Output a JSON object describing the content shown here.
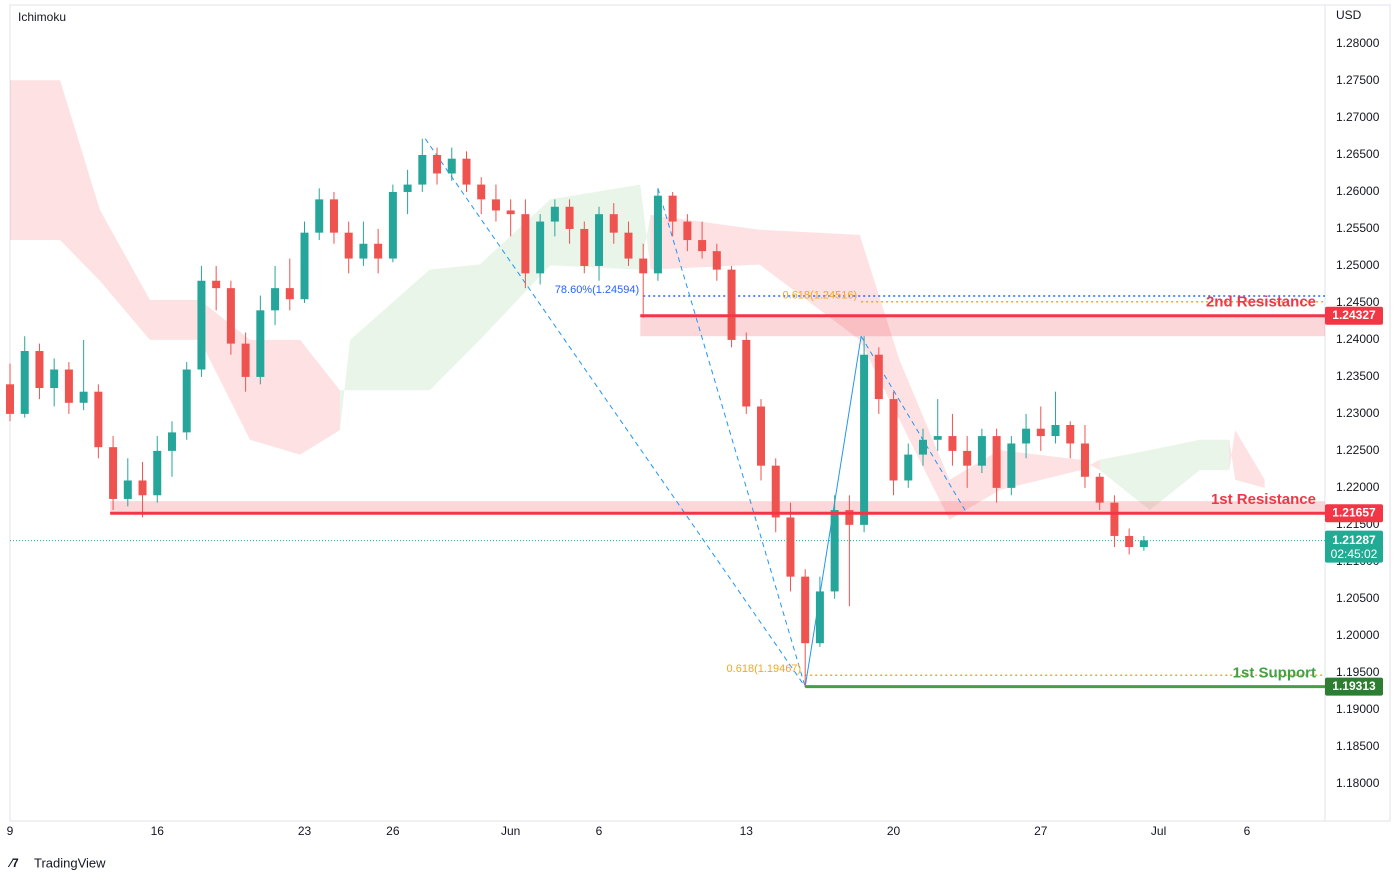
{
  "chart_data": {
    "type": "candlestick",
    "title": "Ichimoku",
    "currency": "USD",
    "brand": "TradingView",
    "xlim": [
      0,
      44.65
    ],
    "ylim": [
      1.1751,
      1.2846
    ],
    "xticks": [
      {
        "value": 0,
        "label": "9"
      },
      {
        "value": 5,
        "label": "16"
      },
      {
        "value": 10,
        "label": "23"
      },
      {
        "value": 13,
        "label": "26"
      },
      {
        "value": 17,
        "label": "Jun"
      },
      {
        "value": 20,
        "label": "6"
      },
      {
        "value": 25,
        "label": "13"
      },
      {
        "value": 30,
        "label": "20"
      },
      {
        "value": 35,
        "label": "27"
      },
      {
        "value": 39,
        "label": "Jul"
      },
      {
        "value": 42,
        "label": "6"
      }
    ],
    "yticks": [
      {
        "value": 1.28,
        "label": "1.28000"
      },
      {
        "value": 1.275,
        "label": "1.27500"
      },
      {
        "value": 1.27,
        "label": "1.27000"
      },
      {
        "value": 1.265,
        "label": "1.26500"
      },
      {
        "value": 1.26,
        "label": "1.26000"
      },
      {
        "value": 1.255,
        "label": "1.25500"
      },
      {
        "value": 1.25,
        "label": "1.25000"
      },
      {
        "value": 1.245,
        "label": "1.24500"
      },
      {
        "value": 1.24,
        "label": "1.24000"
      },
      {
        "value": 1.235,
        "label": "1.23500"
      },
      {
        "value": 1.23,
        "label": "1.23000"
      },
      {
        "value": 1.225,
        "label": "1.22500"
      },
      {
        "value": 1.22,
        "label": "1.22000"
      },
      {
        "value": 1.215,
        "label": "1.21500"
      },
      {
        "value": 1.21,
        "label": "1.21000"
      },
      {
        "value": 1.205,
        "label": "1.20500"
      },
      {
        "value": 1.2,
        "label": "1.20000"
      },
      {
        "value": 1.195,
        "label": "1.19500"
      },
      {
        "value": 1.19,
        "label": "1.19000"
      },
      {
        "value": 1.185,
        "label": "1.18500"
      },
      {
        "value": 1.18,
        "label": "1.18000"
      }
    ],
    "up_color": "#26a69a",
    "down_color": "#ef5350",
    "ohlc": [
      [
        0,
        1.234,
        1.2368,
        1.229,
        1.23
      ],
      [
        0.5,
        1.23,
        1.2405,
        1.2295,
        1.2385
      ],
      [
        1,
        1.2385,
        1.2395,
        1.232,
        1.2335
      ],
      [
        1.5,
        1.2335,
        1.2375,
        1.231,
        1.236
      ],
      [
        2,
        1.236,
        1.237,
        1.23,
        1.2315
      ],
      [
        2.5,
        1.2315,
        1.24,
        1.2305,
        1.233
      ],
      [
        3,
        1.233,
        1.234,
        1.224,
        1.2255
      ],
      [
        3.5,
        1.2255,
        1.227,
        1.217,
        1.2185
      ],
      [
        4,
        1.2185,
        1.224,
        1.2175,
        1.221
      ],
      [
        4.5,
        1.221,
        1.2235,
        1.216,
        1.219
      ],
      [
        5,
        1.219,
        1.227,
        1.218,
        1.225
      ],
      [
        5.5,
        1.225,
        1.229,
        1.2215,
        1.2275
      ],
      [
        6,
        1.2275,
        1.237,
        1.2265,
        1.236
      ],
      [
        6.5,
        1.236,
        1.25,
        1.235,
        1.248
      ],
      [
        7,
        1.248,
        1.25,
        1.244,
        1.247
      ],
      [
        7.5,
        1.247,
        1.248,
        1.238,
        1.2395
      ],
      [
        8,
        1.2395,
        1.241,
        1.233,
        1.235
      ],
      [
        8.5,
        1.235,
        1.246,
        1.234,
        1.244
      ],
      [
        9,
        1.244,
        1.25,
        1.242,
        1.247
      ],
      [
        9.5,
        1.247,
        1.251,
        1.244,
        1.2455
      ],
      [
        10,
        1.2455,
        1.256,
        1.245,
        1.2545
      ],
      [
        10.5,
        1.2545,
        1.2605,
        1.2535,
        1.259
      ],
      [
        11,
        1.259,
        1.26,
        1.253,
        1.2545
      ],
      [
        11.5,
        1.2545,
        1.256,
        1.249,
        1.251
      ],
      [
        12,
        1.251,
        1.256,
        1.25,
        1.253
      ],
      [
        12.5,
        1.253,
        1.255,
        1.249,
        1.251
      ],
      [
        13,
        1.251,
        1.261,
        1.2505,
        1.26
      ],
      [
        13.5,
        1.26,
        1.263,
        1.257,
        1.261
      ],
      [
        14,
        1.261,
        1.2672,
        1.26,
        1.265
      ],
      [
        14.5,
        1.265,
        1.266,
        1.261,
        1.2625
      ],
      [
        15,
        1.2625,
        1.266,
        1.2615,
        1.2645
      ],
      [
        15.5,
        1.2645,
        1.2655,
        1.26,
        1.261
      ],
      [
        16,
        1.261,
        1.262,
        1.257,
        1.259
      ],
      [
        16.5,
        1.259,
        1.261,
        1.256,
        1.2575
      ],
      [
        17,
        1.2575,
        1.259,
        1.254,
        1.257
      ],
      [
        17.5,
        1.257,
        1.259,
        1.247,
        1.249
      ],
      [
        18,
        1.249,
        1.257,
        1.2475,
        1.256
      ],
      [
        18.5,
        1.256,
        1.259,
        1.254,
        1.258
      ],
      [
        19,
        1.258,
        1.259,
        1.253,
        1.255
      ],
      [
        19.5,
        1.255,
        1.256,
        1.249,
        1.25
      ],
      [
        20,
        1.25,
        1.258,
        1.248,
        1.257
      ],
      [
        20.5,
        1.257,
        1.2585,
        1.253,
        1.2545
      ],
      [
        21,
        1.2545,
        1.256,
        1.25,
        1.251
      ],
      [
        21.5,
        1.251,
        1.253,
        1.243,
        1.249
      ],
      [
        22,
        1.249,
        1.2605,
        1.248,
        1.2595
      ],
      [
        22.5,
        1.2595,
        1.26,
        1.254,
        1.256
      ],
      [
        23,
        1.256,
        1.257,
        1.252,
        1.2535
      ],
      [
        23.5,
        1.2535,
        1.256,
        1.251,
        1.252
      ],
      [
        24,
        1.252,
        1.253,
        1.248,
        1.2495
      ],
      [
        24.5,
        1.2495,
        1.25,
        1.239,
        1.24
      ],
      [
        25,
        1.24,
        1.241,
        1.23,
        1.231
      ],
      [
        25.5,
        1.231,
        1.232,
        1.221,
        1.223
      ],
      [
        26,
        1.223,
        1.224,
        1.214,
        1.216
      ],
      [
        26.5,
        1.216,
        1.218,
        1.206,
        1.208
      ],
      [
        27,
        1.208,
        1.209,
        1.1931,
        1.199
      ],
      [
        27.5,
        1.199,
        1.208,
        1.1985,
        1.206
      ],
      [
        28,
        1.206,
        1.219,
        1.205,
        1.217
      ],
      [
        28.5,
        1.217,
        1.219,
        1.204,
        1.215
      ],
      [
        29,
        1.215,
        1.2405,
        1.214,
        1.238
      ],
      [
        29.5,
        1.238,
        1.239,
        1.23,
        1.232
      ],
      [
        30,
        1.232,
        1.233,
        1.219,
        1.221
      ],
      [
        30.5,
        1.221,
        1.226,
        1.22,
        1.2245
      ],
      [
        31,
        1.2245,
        1.228,
        1.223,
        1.2265
      ],
      [
        31.5,
        1.2265,
        1.232,
        1.225,
        1.227
      ],
      [
        32,
        1.227,
        1.23,
        1.223,
        1.225
      ],
      [
        32.5,
        1.225,
        1.227,
        1.22,
        1.223
      ],
      [
        33,
        1.223,
        1.228,
        1.222,
        1.227
      ],
      [
        33.5,
        1.227,
        1.228,
        1.218,
        1.22
      ],
      [
        34,
        1.22,
        1.227,
        1.219,
        1.226
      ],
      [
        34.5,
        1.226,
        1.23,
        1.224,
        1.228
      ],
      [
        35,
        1.228,
        1.231,
        1.225,
        1.227
      ],
      [
        35.5,
        1.227,
        1.233,
        1.226,
        1.2285
      ],
      [
        36,
        1.2285,
        1.229,
        1.224,
        1.226
      ],
      [
        36.5,
        1.226,
        1.2285,
        1.22,
        1.2215
      ],
      [
        37,
        1.2215,
        1.222,
        1.217,
        1.218
      ],
      [
        37.5,
        1.218,
        1.219,
        1.212,
        1.2135
      ],
      [
        38,
        1.2135,
        1.2145,
        1.211,
        1.212
      ],
      [
        38.5,
        1.212,
        1.2135,
        1.2115,
        1.2129
      ]
    ],
    "cloud": {
      "bull_color": "rgba(76,175,80,0.13)",
      "bear_color": "rgba(242,54,69,0.15)",
      "x": [
        0,
        1.7,
        3.05,
        4.75,
        6.45,
        8.15,
        9.85,
        11.2,
        11.55,
        14.25,
        15.95,
        18.35,
        21.4,
        21.75,
        25.45,
        28.85,
        30.2,
        31.9,
        33.6,
        36.35,
        37,
        38.7,
        40.4,
        41.4,
        41.6,
        42.6
      ],
      "span_a": [
        1.2535,
        1.2535,
        1.248,
        1.24,
        1.24,
        1.2265,
        1.2245,
        1.2278,
        1.24,
        1.2495,
        1.2502,
        1.259,
        1.261,
        1.2495,
        1.2502,
        1.24,
        1.2292,
        1.2157,
        1.2197,
        1.2224,
        1.2238,
        1.2251,
        1.2265,
        1.2265,
        1.2211,
        1.22
      ],
      "span_b": [
        1.2751,
        1.2751,
        1.2576,
        1.2454,
        1.2454,
        1.24,
        1.24,
        1.2332,
        1.2332,
        1.2332,
        1.24,
        1.2501,
        1.2495,
        1.2569,
        1.2549,
        1.2542,
        1.2373,
        1.2211,
        1.2251,
        1.2238,
        1.2224,
        1.217,
        1.2224,
        1.2224,
        1.2278,
        1.2211
      ]
    },
    "levels": [
      {
        "name": "2nd Resistance",
        "value": 1.24327,
        "zone": [
          1.2405,
          1.24327
        ],
        "start": 21.4,
        "color": "#f23645",
        "badge": "#f23645"
      },
      {
        "name": "1st Resistance",
        "value": 1.21657,
        "zone": [
          1.21657,
          1.2182
        ],
        "start": 3.4,
        "color": "#f23645",
        "badge": "#f23645"
      },
      {
        "name": "1st Support",
        "value": 1.19313,
        "start": 27,
        "color": "#43a047",
        "badge": "#2e7d32"
      }
    ],
    "fibs": [
      {
        "label": "78.60%(1.24594)",
        "value": 1.24594,
        "start": 21.5,
        "color": "#2962ff"
      },
      {
        "label": "0.618(1.24516)",
        "value": 1.24516,
        "start": 28.9,
        "color": "#f5a623"
      },
      {
        "label": "0.618(1.19467)",
        "value": 1.19467,
        "start": 27,
        "color": "#f5a623"
      }
    ],
    "pattern": [
      [
        [
          14.1,
          1.2672
        ],
        [
          27,
          1.1931
        ]
      ],
      [
        [
          22,
          1.2605
        ],
        [
          27,
          1.1931
        ]
      ],
      [
        [
          27,
          1.1931
        ],
        [
          28.9,
          1.2405
        ]
      ],
      [
        [
          28.9,
          1.2405
        ],
        [
          32.5,
          1.2165
        ]
      ]
    ],
    "last": {
      "value": 1.21287,
      "countdown": "02:45:02",
      "color": "#22ab94"
    }
  }
}
